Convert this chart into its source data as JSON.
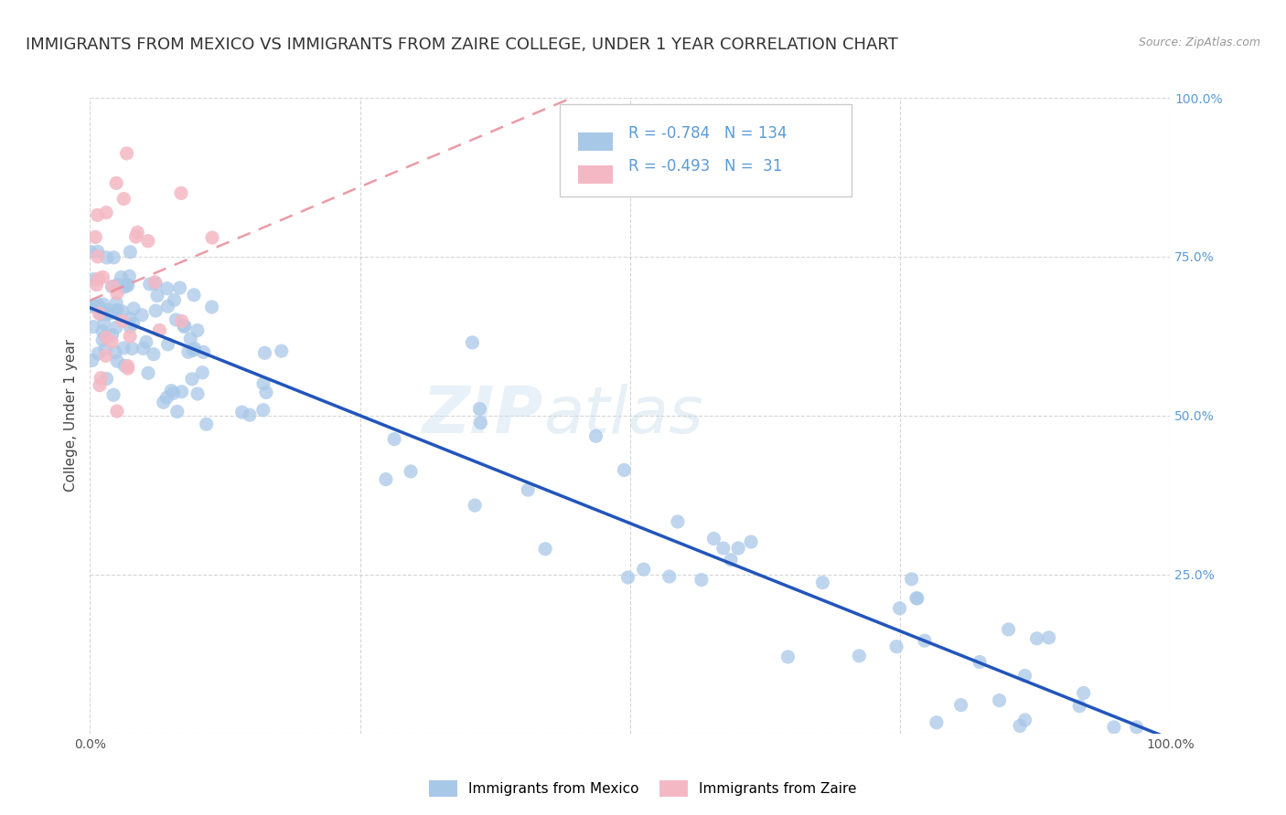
{
  "title": "IMMIGRANTS FROM MEXICO VS IMMIGRANTS FROM ZAIRE COLLEGE, UNDER 1 YEAR CORRELATION CHART",
  "source": "Source: ZipAtlas.com",
  "ylabel": "College, Under 1 year",
  "legend_label1": "Immigrants from Mexico",
  "legend_label2": "Immigrants from Zaire",
  "r1": -0.784,
  "n1": 134,
  "r2": -0.493,
  "n2": 31,
  "color_mexico": "#a8c8e8",
  "color_zaire": "#f4b8c4",
  "trendline_mexico_color": "#2255bb",
  "trendline_zaire_color": "#f4b8c4",
  "watermark_zip": "ZIP",
  "watermark_atlas": "atlas",
  "background_color": "#ffffff",
  "grid_color": "#cccccc",
  "title_fontsize": 13,
  "axis_fontsize": 11,
  "tick_fontsize": 10,
  "tick_color_right": "#5b9bd5",
  "legend_text_color": "#5b9bd5"
}
